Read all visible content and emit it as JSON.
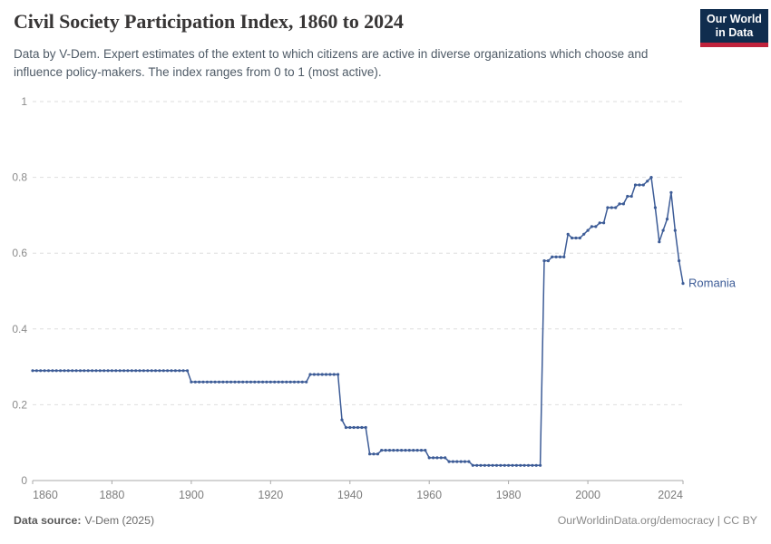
{
  "header": {
    "title": "Civil Society Participation Index, 1860 to 2024",
    "subtitle": "Data by V-Dem. Expert estimates of the extent to which citizens are active in diverse organizations which choose and influence policy-makers. The index ranges from 0 to 1 (most active).",
    "logo_line1": "Our World",
    "logo_line2": "in Data"
  },
  "footer": {
    "source_label": "Data source:",
    "source_value": "V-Dem (2025)",
    "credit": "OurWorldinData.org/democracy | CC BY"
  },
  "colors": {
    "series": "#3d5c97",
    "logo_bg": "#102d4e",
    "logo_accent": "#c0233c",
    "gridline": "#dedede",
    "axis": "#a8a8a8",
    "y_tick_label": "#8b8b8b",
    "x_tick_label": "#7d7d7d"
  },
  "chart_data": {
    "type": "line",
    "title": "Civil Society Participation Index, 1860 to 2024",
    "xlabel": "",
    "ylabel": "",
    "xlim": [
      1860,
      2024
    ],
    "ylim": [
      0,
      1
    ],
    "xticks": [
      1860,
      1880,
      1900,
      1920,
      1940,
      1960,
      1980,
      2000,
      2024
    ],
    "yticks": [
      0,
      0.2,
      0.4,
      0.6,
      0.8,
      1
    ],
    "grid": "horizontal-dashed",
    "legend_position": "end-of-line-label",
    "series": [
      {
        "name": "Romania",
        "color": "#3d5c97",
        "x_start": 1860,
        "x_step": 1,
        "values": [
          0.29,
          0.29,
          0.29,
          0.29,
          0.29,
          0.29,
          0.29,
          0.29,
          0.29,
          0.29,
          0.29,
          0.29,
          0.29,
          0.29,
          0.29,
          0.29,
          0.29,
          0.29,
          0.29,
          0.29,
          0.29,
          0.29,
          0.29,
          0.29,
          0.29,
          0.29,
          0.29,
          0.29,
          0.29,
          0.29,
          0.29,
          0.29,
          0.29,
          0.29,
          0.29,
          0.29,
          0.29,
          0.29,
          0.29,
          0.29,
          0.26,
          0.26,
          0.26,
          0.26,
          0.26,
          0.26,
          0.26,
          0.26,
          0.26,
          0.26,
          0.26,
          0.26,
          0.26,
          0.26,
          0.26,
          0.26,
          0.26,
          0.26,
          0.26,
          0.26,
          0.26,
          0.26,
          0.26,
          0.26,
          0.26,
          0.26,
          0.26,
          0.26,
          0.26,
          0.26,
          0.28,
          0.28,
          0.28,
          0.28,
          0.28,
          0.28,
          0.28,
          0.28,
          0.16,
          0.14,
          0.14,
          0.14,
          0.14,
          0.14,
          0.14,
          0.07,
          0.07,
          0.07,
          0.08,
          0.08,
          0.08,
          0.08,
          0.08,
          0.08,
          0.08,
          0.08,
          0.08,
          0.08,
          0.08,
          0.08,
          0.06,
          0.06,
          0.06,
          0.06,
          0.06,
          0.05,
          0.05,
          0.05,
          0.05,
          0.05,
          0.05,
          0.04,
          0.04,
          0.04,
          0.04,
          0.04,
          0.04,
          0.04,
          0.04,
          0.04,
          0.04,
          0.04,
          0.04,
          0.04,
          0.04,
          0.04,
          0.04,
          0.04,
          0.04,
          0.58,
          0.58,
          0.59,
          0.59,
          0.59,
          0.59,
          0.65,
          0.64,
          0.64,
          0.64,
          0.65,
          0.66,
          0.67,
          0.67,
          0.68,
          0.68,
          0.72,
          0.72,
          0.72,
          0.73,
          0.73,
          0.75,
          0.75,
          0.78,
          0.78,
          0.78,
          0.79,
          0.8,
          0.72,
          0.63,
          0.66,
          0.69,
          0.76,
          0.66,
          0.58,
          0.52
        ]
      }
    ]
  }
}
